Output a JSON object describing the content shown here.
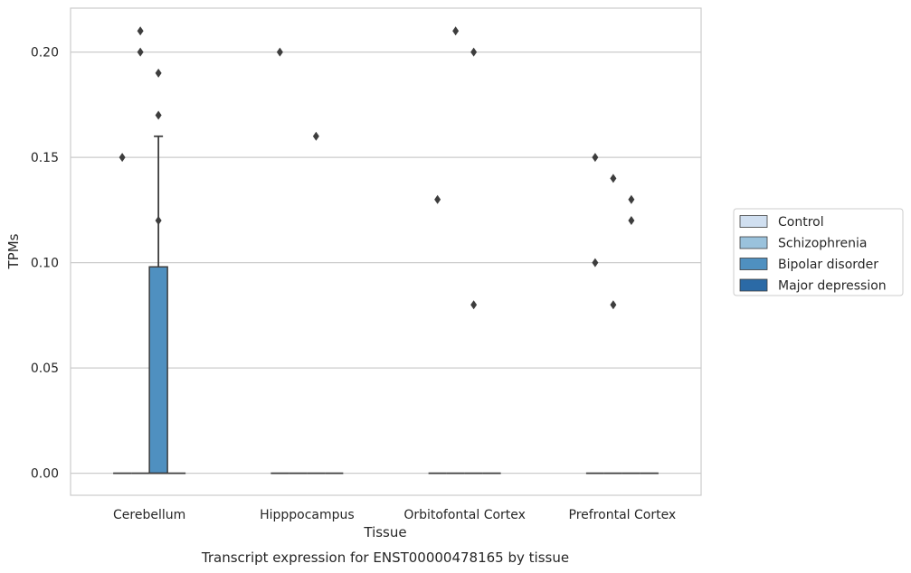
{
  "chart_data": {
    "type": "box",
    "xlabel": "Tissue",
    "ylabel": "TPMs",
    "caption": "Transcript expression for ENST00000478165 by tissue",
    "categories": [
      "Cerebellum",
      "Hipppocampus",
      "Orbitofontal Cortex",
      "Prefrontal Cortex"
    ],
    "ylim": [
      -0.01,
      0.22
    ],
    "yticks": [
      0.0,
      0.05,
      0.1,
      0.15,
      0.2
    ],
    "ytick_labels": [
      "0.00",
      "0.05",
      "0.10",
      "0.15",
      "0.20"
    ],
    "grid": "horizontal",
    "legend_position": "right",
    "series": [
      {
        "name": "Control",
        "color": "#d0dff0",
        "boxes": [
          {
            "category": "Cerebellum",
            "min": 0,
            "q1": 0,
            "median": 0,
            "q3": 0,
            "max": 0,
            "outliers": [
              0.15
            ]
          },
          {
            "category": "Hipppocampus",
            "min": 0,
            "q1": 0,
            "median": 0,
            "q3": 0,
            "max": 0,
            "outliers": [
              0.2
            ]
          },
          {
            "category": "Orbitofontal Cortex",
            "min": 0,
            "q1": 0,
            "median": 0,
            "q3": 0,
            "max": 0,
            "outliers": [
              0.13
            ]
          },
          {
            "category": "Prefrontal Cortex",
            "min": 0,
            "q1": 0,
            "median": 0,
            "q3": 0,
            "max": 0,
            "outliers": [
              0.15,
              0.1
            ]
          }
        ]
      },
      {
        "name": "Schizophrenia",
        "color": "#9ac2dc",
        "boxes": [
          {
            "category": "Cerebellum",
            "min": 0,
            "q1": 0,
            "median": 0,
            "q3": 0,
            "max": 0,
            "outliers": [
              0.21,
              0.2
            ]
          },
          {
            "category": "Hipppocampus",
            "min": 0,
            "q1": 0,
            "median": 0,
            "q3": 0,
            "max": 0,
            "outliers": []
          },
          {
            "category": "Orbitofontal Cortex",
            "min": 0,
            "q1": 0,
            "median": 0,
            "q3": 0,
            "max": 0,
            "outliers": [
              0.21
            ]
          },
          {
            "category": "Prefrontal Cortex",
            "min": 0,
            "q1": 0,
            "median": 0,
            "q3": 0,
            "max": 0,
            "outliers": [
              0.14,
              0.08
            ]
          }
        ]
      },
      {
        "name": "Bipolar disorder",
        "color": "#4f90c0",
        "boxes": [
          {
            "category": "Cerebellum",
            "min": 0,
            "q1": 0,
            "median": 0,
            "q3": 0.098,
            "max": 0.16,
            "outliers": [
              0.19,
              0.17,
              0.12
            ]
          },
          {
            "category": "Hipppocampus",
            "min": 0,
            "q1": 0,
            "median": 0,
            "q3": 0,
            "max": 0,
            "outliers": [
              0.16
            ]
          },
          {
            "category": "Orbitofontal Cortex",
            "min": 0,
            "q1": 0,
            "median": 0,
            "q3": 0,
            "max": 0,
            "outliers": [
              0.2,
              0.08
            ]
          },
          {
            "category": "Prefrontal Cortex",
            "min": 0,
            "q1": 0,
            "median": 0,
            "q3": 0,
            "max": 0,
            "outliers": [
              0.13,
              0.12
            ]
          }
        ]
      },
      {
        "name": "Major depression",
        "color": "#2b6aa6",
        "boxes": [
          {
            "category": "Cerebellum",
            "min": 0,
            "q1": 0,
            "median": 0,
            "q3": 0,
            "max": 0,
            "outliers": []
          },
          {
            "category": "Hipppocampus",
            "min": 0,
            "q1": 0,
            "median": 0,
            "q3": 0,
            "max": 0,
            "outliers": []
          },
          {
            "category": "Orbitofontal Cortex",
            "min": 0,
            "q1": 0,
            "median": 0,
            "q3": 0,
            "max": 0,
            "outliers": []
          },
          {
            "category": "Prefrontal Cortex",
            "min": 0,
            "q1": 0,
            "median": 0,
            "q3": 0,
            "max": 0,
            "outliers": []
          }
        ]
      }
    ],
    "colors": {
      "grid": "#cccccc",
      "frame": "#cccccc",
      "marks": "#3d3d3d"
    }
  }
}
